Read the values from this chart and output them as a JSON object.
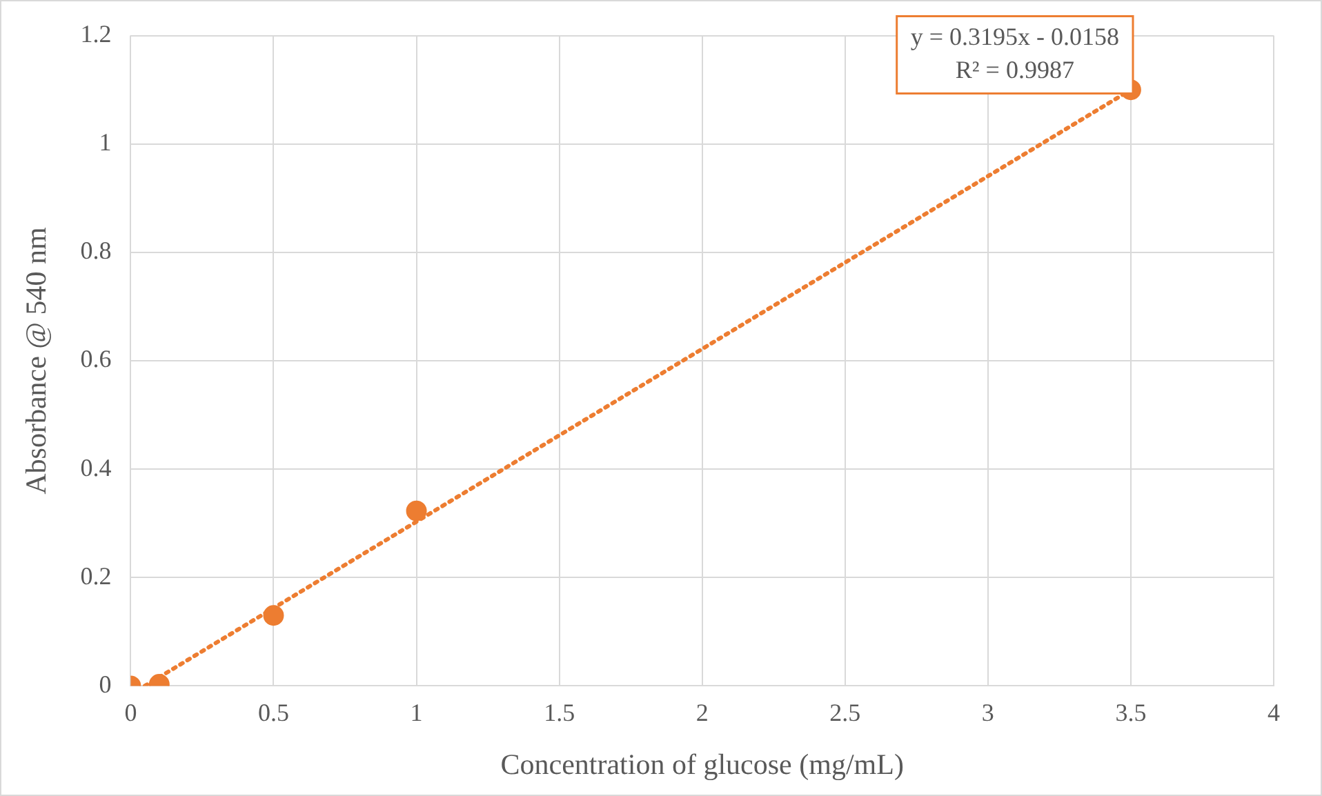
{
  "chart_data": {
    "type": "scatter",
    "xlabel": "Concentration of glucose (mg/mL)",
    "ylabel": "Absorbance @ 540 nm",
    "xlim": [
      0,
      4
    ],
    "xticks": [
      0,
      0.5,
      1,
      1.5,
      2,
      2.5,
      3,
      3.5,
      4
    ],
    "ylim": [
      0,
      1.2
    ],
    "yticks": [
      0,
      0.2,
      0.4,
      0.6,
      0.8,
      1,
      1.2
    ],
    "grid": true,
    "legend": false,
    "marker": "circle",
    "series": [
      {
        "color": "#ed7d31",
        "x": [
          0,
          0.1,
          0.5,
          1,
          3.5
        ],
        "values": [
          0,
          0.003,
          0.13,
          0.323,
          1.1
        ]
      },
      {
        "type": "line",
        "line_style": "dotted",
        "marker": "none",
        "color": "#ed7d31",
        "x": [
          0.0495,
          3.5
        ],
        "values": [
          0,
          1.1
        ]
      }
    ],
    "annotations": [
      "y = 0.3195x - 0.0158",
      "R² = 0.9987"
    ]
  }
}
